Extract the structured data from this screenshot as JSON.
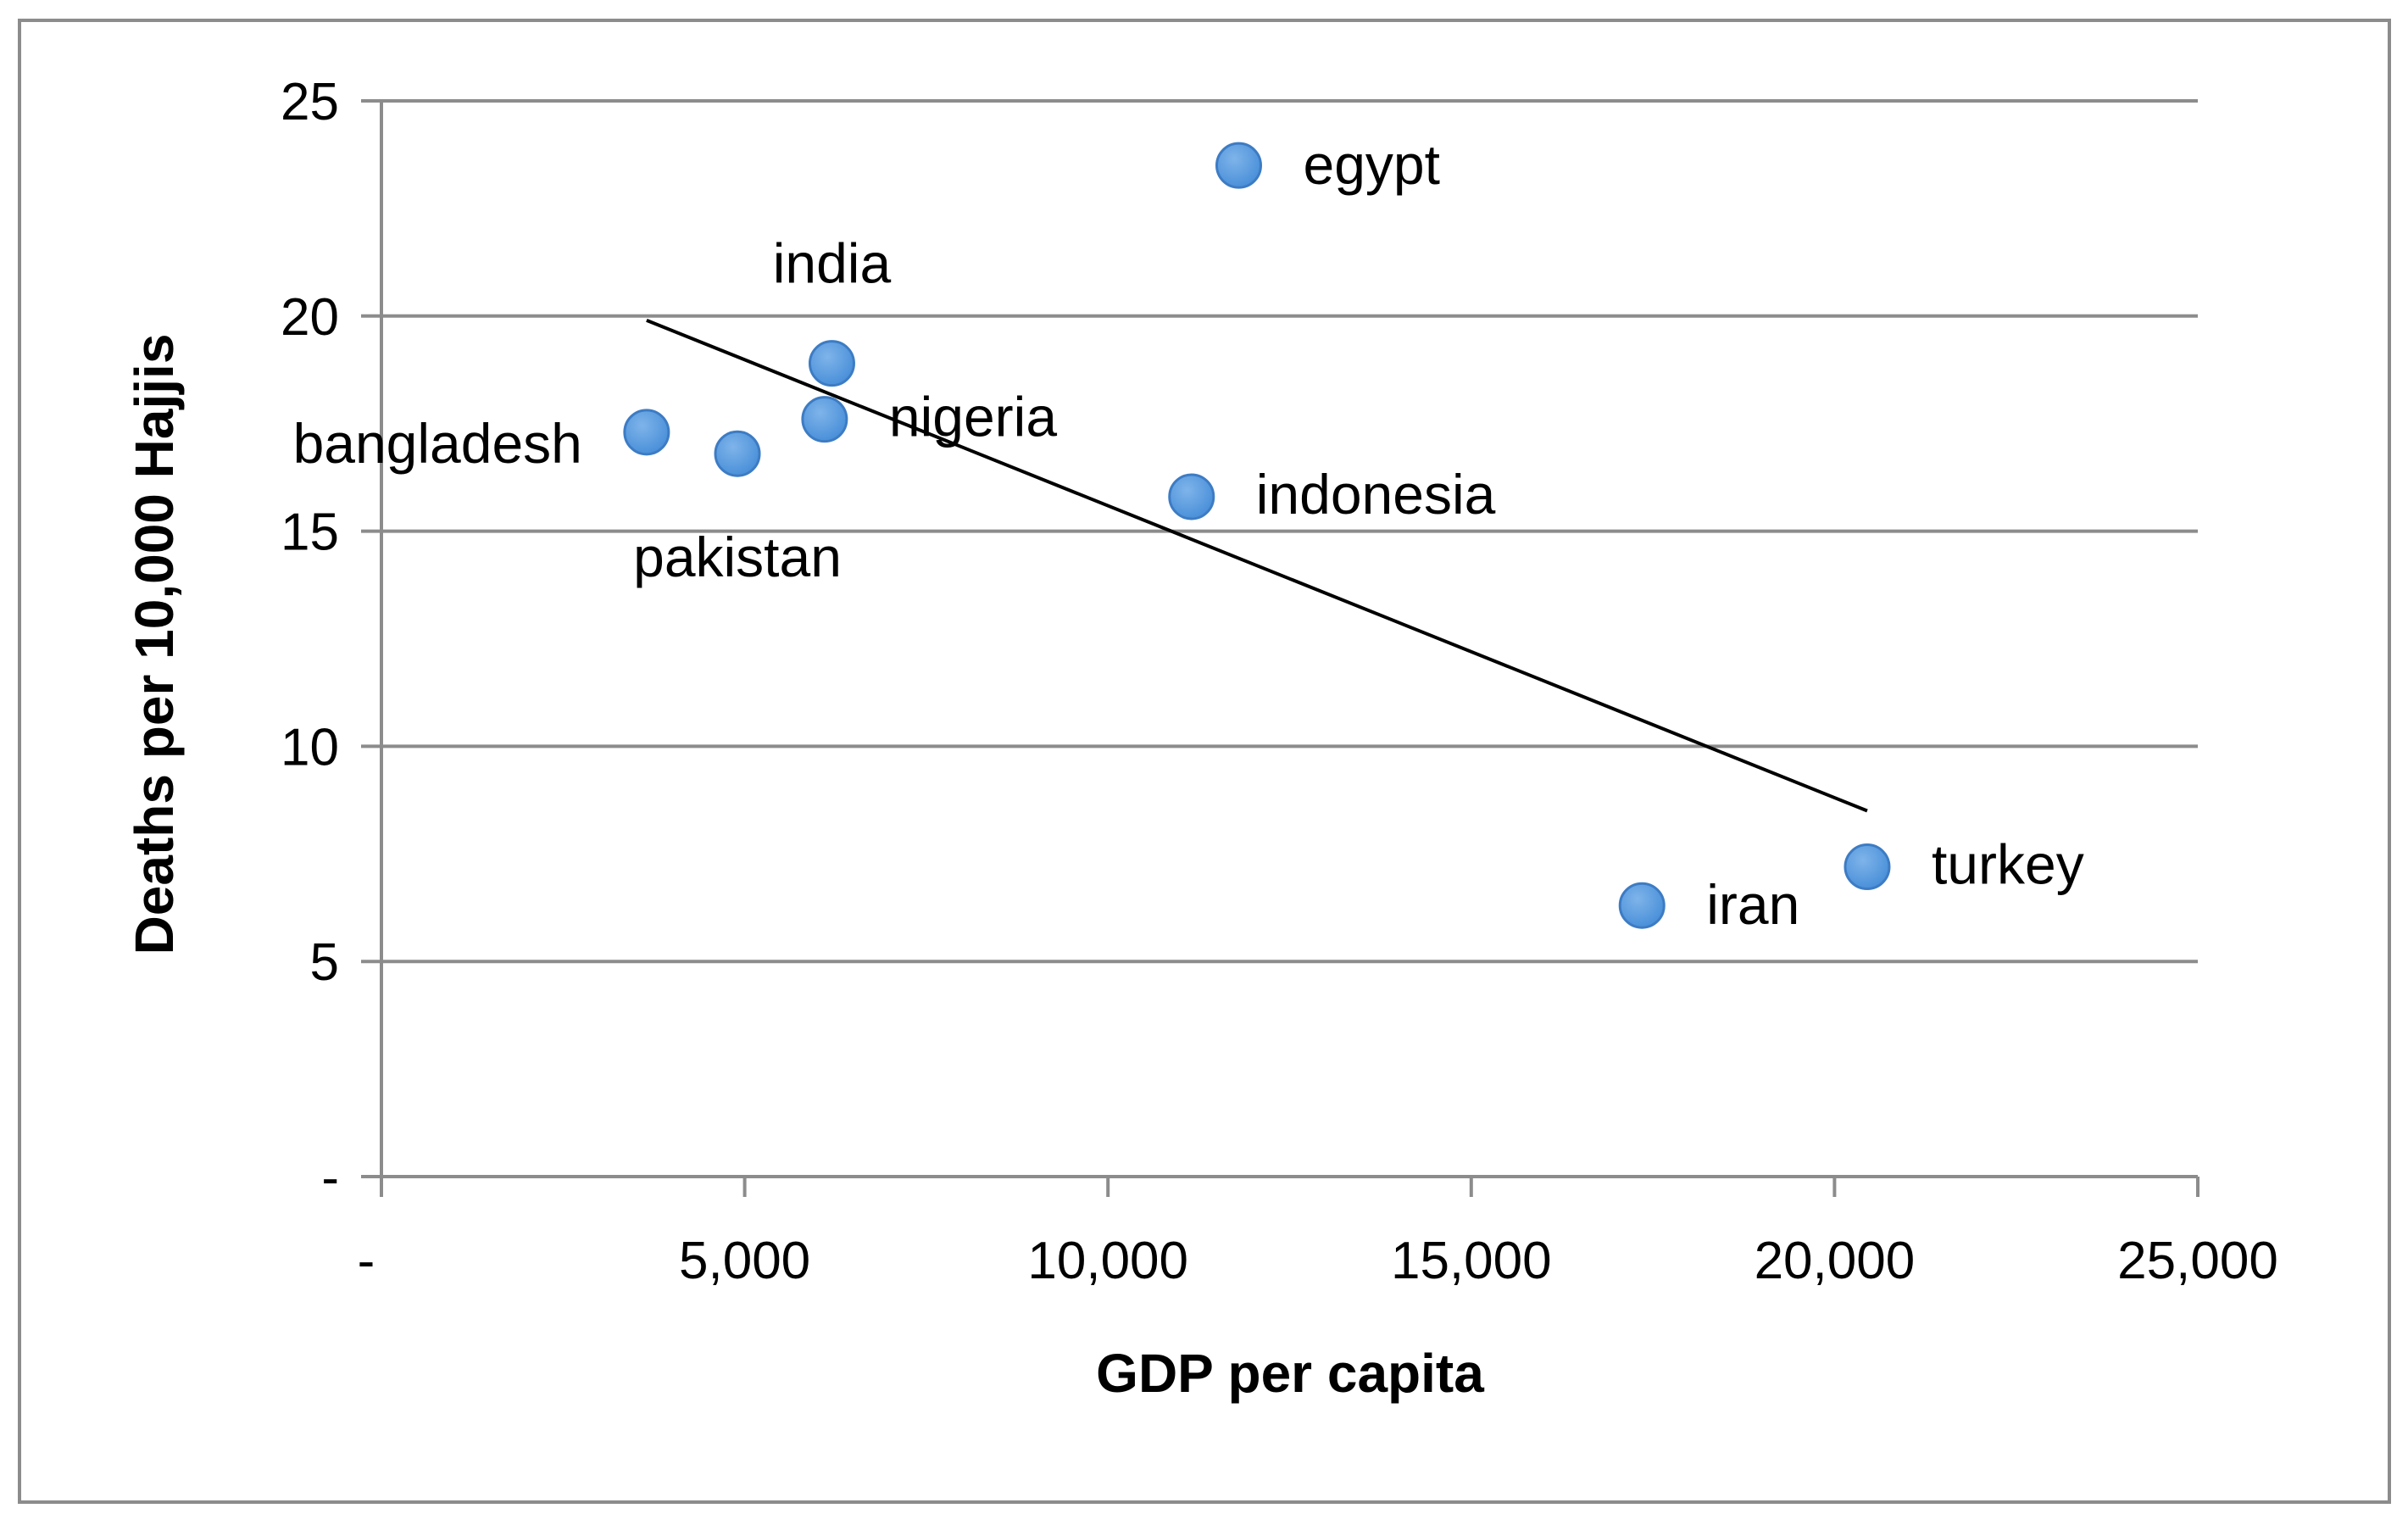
{
  "chart_data": {
    "type": "scatter",
    "title": "",
    "xlabel": "GDP per capita",
    "ylabel": "Deaths per 10,000 Hajjis",
    "xlim": [
      0,
      25000
    ],
    "ylim": [
      0,
      25
    ],
    "x_ticks": [
      0,
      5000,
      10000,
      15000,
      20000,
      25000
    ],
    "x_tick_labels": [
      "-",
      "5,000",
      "10,000",
      "15,000",
      "20,000",
      "25,000"
    ],
    "y_ticks": [
      0,
      5,
      10,
      15,
      20,
      25
    ],
    "y_tick_labels": [
      "-",
      "5",
      "10",
      "15",
      "20",
      "25"
    ],
    "grid": "horizontal",
    "legend": "none",
    "series": [
      {
        "color": "#4a90d9",
        "points": [
          {
            "label": "egypt",
            "x": 11800,
            "y": 23.5
          },
          {
            "label": "india",
            "x": 6200,
            "y": 18.9
          },
          {
            "label": "nigeria",
            "x": 6100,
            "y": 17.6
          },
          {
            "label": "bangladesh",
            "x": 3650,
            "y": 17.3
          },
          {
            "label": "pakistan",
            "x": 4900,
            "y": 16.8
          },
          {
            "label": "indonesia",
            "x": 11150,
            "y": 15.8
          },
          {
            "label": "turkey",
            "x": 20450,
            "y": 7.2
          },
          {
            "label": "iran",
            "x": 17350,
            "y": 6.3
          }
        ]
      }
    ],
    "trendline": {
      "type": "linear",
      "color": "#000000",
      "x": [
        3650,
        20450
      ],
      "y": [
        19.9,
        8.5
      ]
    }
  }
}
